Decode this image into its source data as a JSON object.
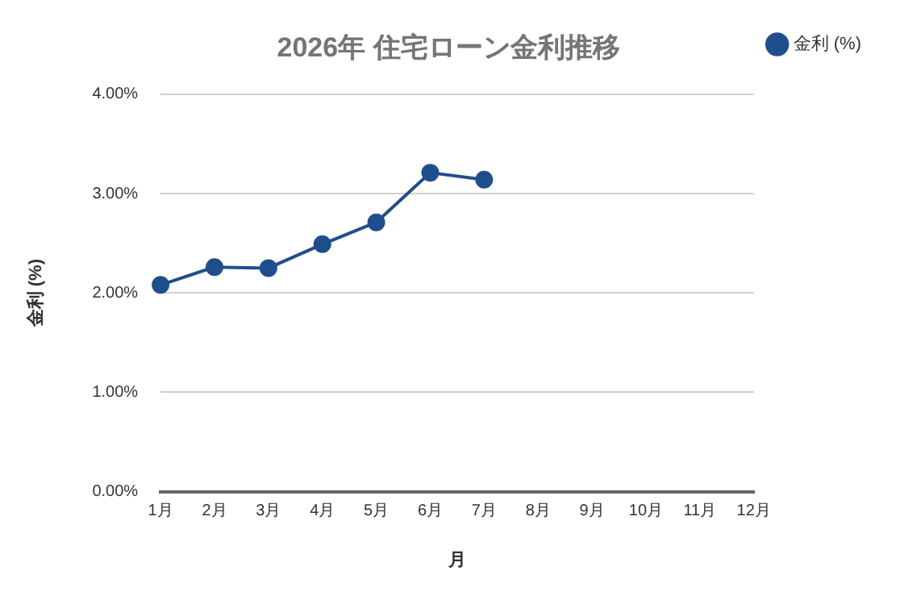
{
  "chart_data": {
    "type": "line",
    "title": "2026年 住宅ローン金利推移",
    "xlabel": "月",
    "ylabel": "金利 (%)",
    "categories": [
      "1月",
      "2月",
      "3月",
      "4月",
      "5月",
      "6月",
      "7月",
      "8月",
      "9月",
      "10月",
      "11月",
      "12月"
    ],
    "series": [
      {
        "name": "金利 (%)",
        "color": "#1f4e8c",
        "values": [
          2.08,
          2.26,
          2.25,
          2.49,
          2.71,
          3.21,
          3.14,
          null,
          null,
          null,
          null,
          null
        ]
      }
    ],
    "ylim": [
      0,
      4
    ],
    "yticks": [
      {
        "value": 0,
        "label": "0.00%"
      },
      {
        "value": 1,
        "label": "1.00%"
      },
      {
        "value": 2,
        "label": "2.00%"
      },
      {
        "value": 3,
        "label": "3.00%"
      },
      {
        "value": 4,
        "label": "4.00%"
      }
    ],
    "grid": "y",
    "legend": "top right",
    "marker": "circle",
    "line_style": "solid"
  }
}
